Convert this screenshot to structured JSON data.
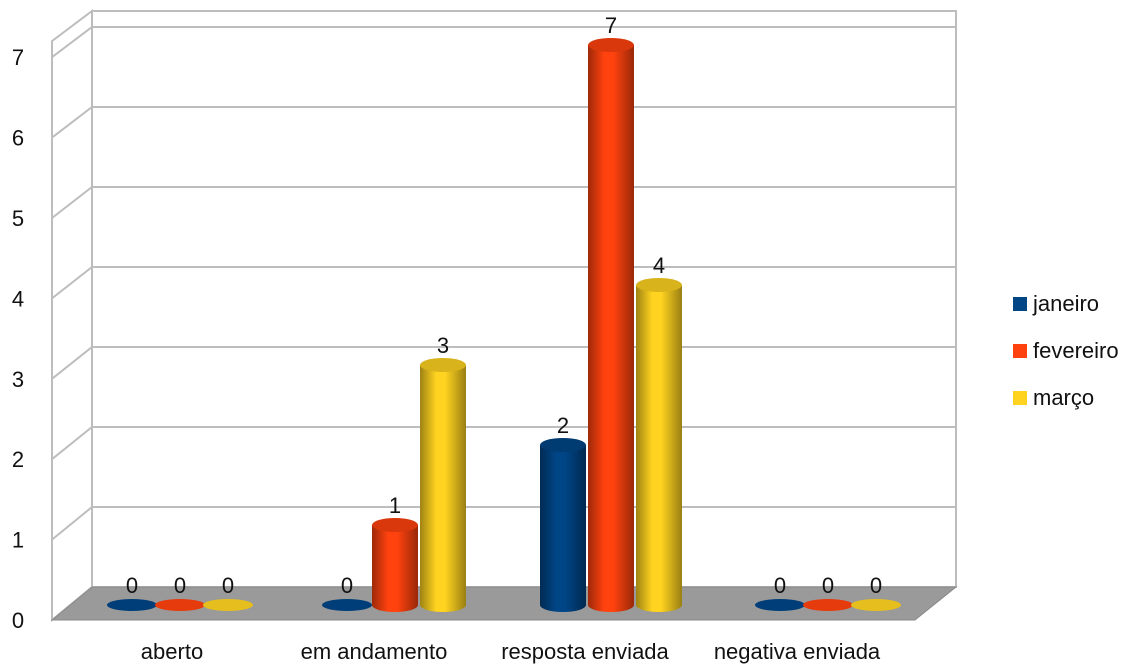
{
  "chart_data": {
    "type": "bar",
    "categories": [
      "aberto",
      "em andamento",
      "resposta enviada",
      "negativa enviada"
    ],
    "series": [
      {
        "name": "janeiro",
        "values": [
          0,
          0,
          2,
          0
        ],
        "color": "#004586"
      },
      {
        "name": "fevereiro",
        "values": [
          0,
          1,
          7,
          0
        ],
        "color": "#FF420E"
      },
      {
        "name": "março",
        "values": [
          0,
          3,
          4,
          0
        ],
        "color": "#FFD320"
      }
    ],
    "ylim": [
      0,
      7
    ],
    "yticks": [
      "0",
      "1",
      "2",
      "3",
      "4",
      "5",
      "6",
      "7"
    ],
    "grid": true,
    "legend_position": "right",
    "style": "3d-cylinder",
    "data_labels": true
  }
}
